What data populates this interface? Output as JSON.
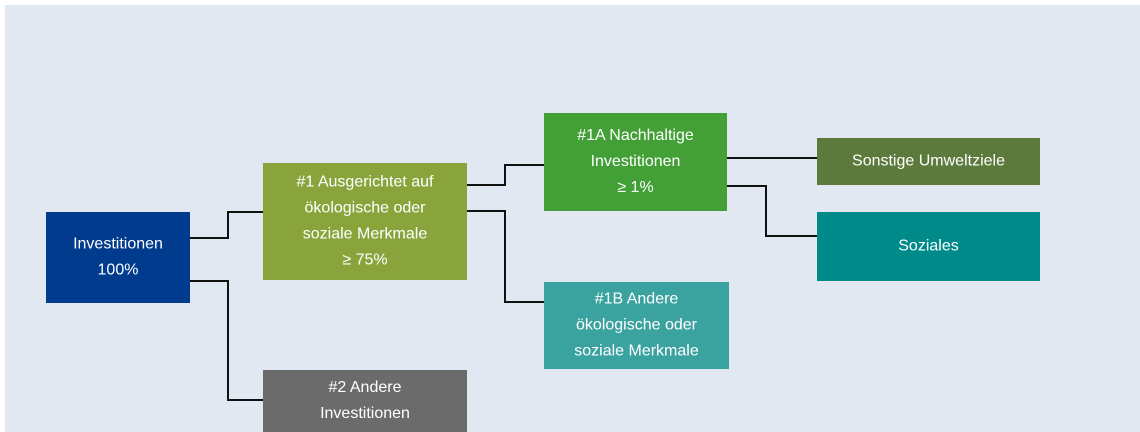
{
  "nodes": [
    {
      "lines": [
        "Investitionen",
        "100%"
      ]
    },
    {
      "lines": [
        "#1 Ausgerichtet auf",
        "ökologische oder",
        "soziale Merkmale",
        "≥ 75%"
      ]
    },
    {
      "lines": [
        "#1A Nachhaltige",
        "Investitionen",
        "≥ 1%"
      ]
    },
    {
      "lines": [
        "#1B Andere",
        "ökologische oder",
        "soziale Merkmale"
      ]
    },
    {
      "lines": [
        "#2 Andere",
        "Investitionen"
      ]
    },
    {
      "lines": [
        "Sonstige Umweltziele"
      ]
    },
    {
      "lines": [
        "Soziales"
      ]
    }
  ]
}
